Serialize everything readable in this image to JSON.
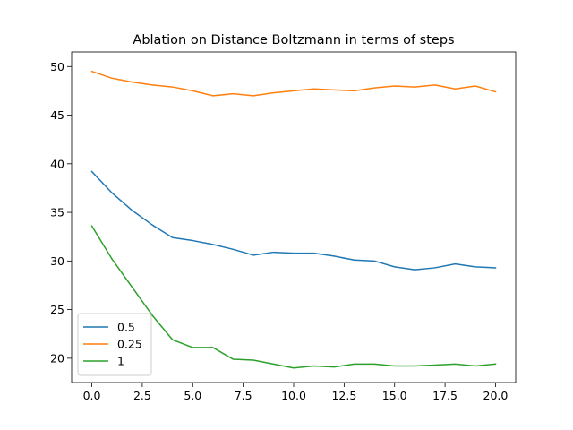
{
  "chart_data": {
    "type": "line",
    "title": "Ablation on Distance Boltzmann in terms of steps",
    "xlabel": "",
    "ylabel": "",
    "xlim": [
      -1,
      21
    ],
    "ylim": [
      17.5,
      51.5
    ],
    "x": [
      0,
      1,
      2,
      3,
      4,
      5,
      6,
      7,
      8,
      9,
      10,
      11,
      12,
      13,
      14,
      15,
      16,
      17,
      18,
      19,
      20
    ],
    "xticks": [
      0.0,
      2.5,
      5.0,
      7.5,
      10.0,
      12.5,
      15.0,
      17.5,
      20.0
    ],
    "xtick_labels": [
      "0.0",
      "2.5",
      "5.0",
      "7.5",
      "10.0",
      "12.5",
      "15.0",
      "17.5",
      "20.0"
    ],
    "yticks": [
      20,
      25,
      30,
      35,
      40,
      45,
      50
    ],
    "ytick_labels": [
      "20",
      "25",
      "30",
      "35",
      "40",
      "45",
      "50"
    ],
    "grid": false,
    "legend_position": "lower-left",
    "series": [
      {
        "name": "0.5",
        "color": "#1f77b4",
        "values": [
          39.2,
          37.0,
          35.2,
          33.7,
          32.4,
          32.1,
          31.7,
          31.2,
          30.6,
          30.9,
          30.8,
          30.8,
          30.5,
          30.1,
          30.0,
          29.4,
          29.1,
          29.3,
          29.7,
          29.4,
          29.3
        ]
      },
      {
        "name": "0.25",
        "color": "#ff7f0e",
        "values": [
          49.5,
          48.8,
          48.4,
          48.1,
          47.9,
          47.5,
          47.0,
          47.2,
          47.0,
          47.3,
          47.5,
          47.7,
          47.6,
          47.5,
          47.8,
          48.0,
          47.9,
          48.1,
          47.7,
          48.0,
          47.4
        ]
      },
      {
        "name": "1",
        "color": "#2ca02c",
        "values": [
          33.6,
          30.2,
          27.3,
          24.4,
          21.9,
          21.1,
          21.1,
          19.9,
          19.8,
          19.4,
          19.0,
          19.2,
          19.1,
          19.4,
          19.4,
          19.2,
          19.2,
          19.3,
          19.4,
          19.2,
          19.4
        ]
      }
    ]
  }
}
